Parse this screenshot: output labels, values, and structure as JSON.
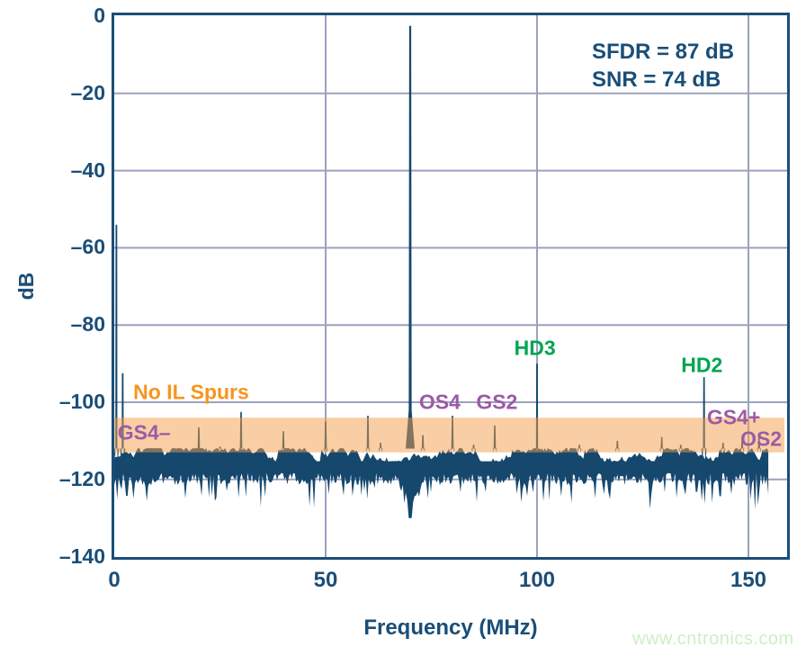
{
  "watermark": {
    "text": "www.cntronics.com"
  },
  "colors": {
    "navy": "#1a4e78",
    "noise": "#16486e",
    "grid": "#9aa2bd",
    "band_fill": "rgba(243,158,74,0.5)",
    "orange": "#f7941e",
    "purple": "#9b5ba6",
    "green": "#00a551",
    "watermark": "#cdeec6",
    "background": "#ffffff"
  },
  "chart_data": {
    "type": "line",
    "title": "",
    "xlabel": "Frequency (MHz)",
    "ylabel": "dB",
    "xlim": [
      0,
      159
    ],
    "ylim": [
      -140,
      0
    ],
    "grid": true,
    "x_ticks": [
      {
        "value": 0,
        "label": "0"
      },
      {
        "value": 50,
        "label": "50"
      },
      {
        "value": 100,
        "label": "100"
      },
      {
        "value": 150,
        "label": "150"
      }
    ],
    "y_ticks": [
      {
        "value": 0,
        "label": "0"
      },
      {
        "value": -20,
        "label": "–20"
      },
      {
        "value": -40,
        "label": "–40"
      },
      {
        "value": -60,
        "label": "–60"
      },
      {
        "value": -80,
        "label": "–80"
      },
      {
        "value": -100,
        "label": "–100"
      },
      {
        "value": -120,
        "label": "–120"
      },
      {
        "value": -140,
        "label": "–140"
      }
    ],
    "annotations": {
      "sfdr": "SFDR = 87 dB",
      "snr": "SNR = 74 dB"
    },
    "signal": {
      "fundamental": {
        "freq_mhz": 70,
        "peak_db": -2.5
      }
    },
    "highlight_band": {
      "meaning": "interleaving-spur region (no IL spurs present)",
      "y_top_db": -104,
      "y_bottom_db": -113
    },
    "spurs": [
      {
        "freq_mhz": 0.5,
        "peak_db": -54
      },
      {
        "freq_mhz": 2,
        "peak_db": -92.5
      },
      {
        "freq_mhz": 20,
        "peak_db": -106.5
      },
      {
        "freq_mhz": 25,
        "peak_db": -111.5
      },
      {
        "freq_mhz": 30,
        "peak_db": -102.5
      },
      {
        "freq_mhz": 40,
        "peak_db": -107.5
      },
      {
        "freq_mhz": 50,
        "peak_db": -105
      },
      {
        "freq_mhz": 60,
        "peak_db": -103.5
      },
      {
        "freq_mhz": 63,
        "peak_db": -110.5
      },
      {
        "freq_mhz": 73,
        "peak_db": -108.5
      },
      {
        "freq_mhz": 80,
        "peak_db": -103.5
      },
      {
        "freq_mhz": 85,
        "peak_db": -111
      },
      {
        "freq_mhz": 90,
        "peak_db": -106
      },
      {
        "freq_mhz": 100,
        "peak_db": -90
      },
      {
        "freq_mhz": 110,
        "peak_db": -111
      },
      {
        "freq_mhz": 119,
        "peak_db": -110
      },
      {
        "freq_mhz": 129.5,
        "peak_db": -109
      },
      {
        "freq_mhz": 134,
        "peak_db": -111
      },
      {
        "freq_mhz": 139.5,
        "peak_db": -93.5
      },
      {
        "freq_mhz": 144,
        "peak_db": -110.5
      },
      {
        "freq_mhz": 148.5,
        "peak_db": -110
      },
      {
        "freq_mhz": 152.5,
        "peak_db": -108.5
      }
    ],
    "spur_labels": [
      {
        "text": "No IL Spurs",
        "color": "orange",
        "x_mhz": 4.5,
        "y_db": -97.5,
        "align": "left"
      },
      {
        "text": "GS4–",
        "color": "purple",
        "x_mhz": 0.8,
        "y_db": -108,
        "align": "left"
      },
      {
        "text": "OS4",
        "color": "purple",
        "x_mhz": 77,
        "y_db": -100,
        "align": "center"
      },
      {
        "text": "GS2",
        "color": "purple",
        "x_mhz": 90.5,
        "y_db": -100,
        "align": "center"
      },
      {
        "text": "HD3",
        "color": "green",
        "x_mhz": 99.5,
        "y_db": -86,
        "align": "center"
      },
      {
        "text": "HD2",
        "color": "green",
        "x_mhz": 139,
        "y_db": -90.5,
        "align": "center"
      },
      {
        "text": "GS4+",
        "color": "purple",
        "x_mhz": 146.5,
        "y_db": -104,
        "align": "center"
      },
      {
        "text": "OS2",
        "color": "purple",
        "x_mhz": 153,
        "y_db": -109.5,
        "align": "center"
      }
    ],
    "noise_floor": {
      "top_db": -113.5,
      "bottom_db_typical": -121,
      "spike_db_min": -128,
      "end_mhz": 155
    }
  }
}
